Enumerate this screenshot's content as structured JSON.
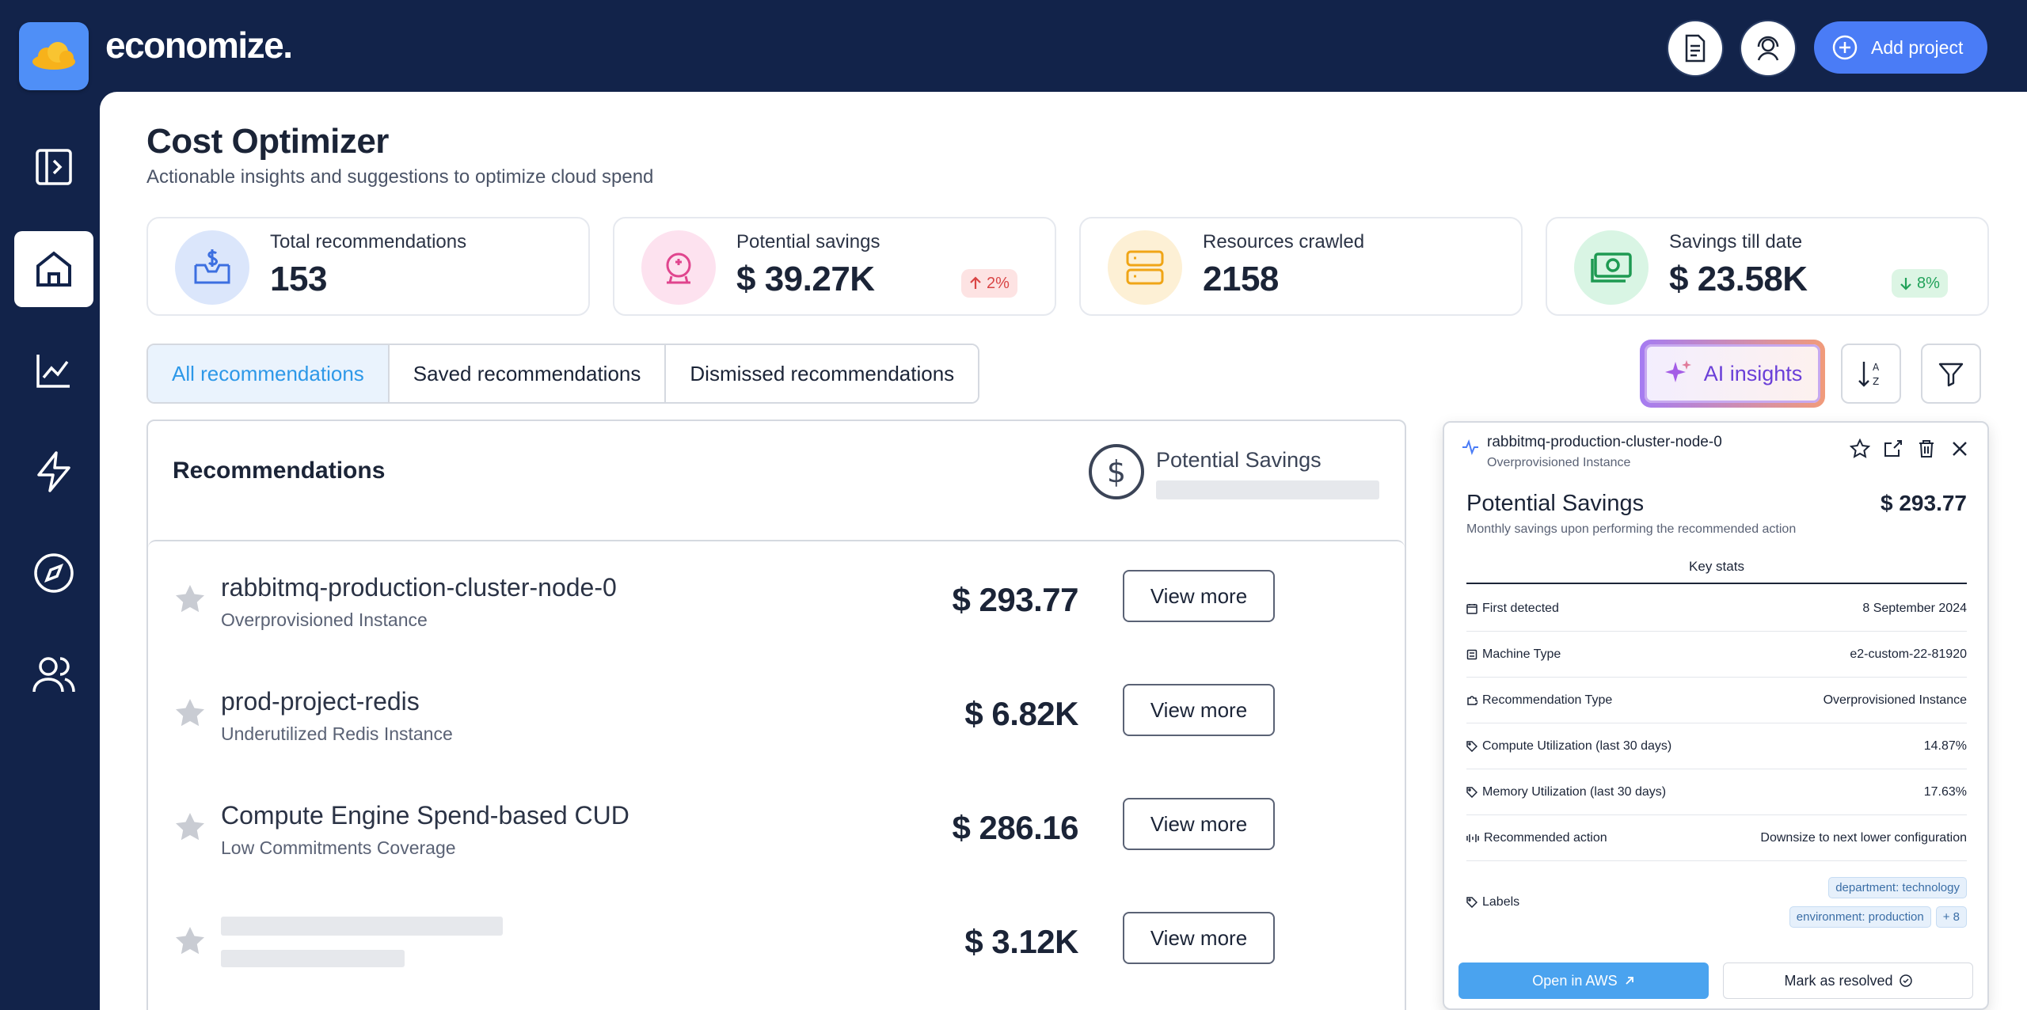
{
  "brand": {
    "name": "economize."
  },
  "header": {
    "docs_icon": "document-icon",
    "support_icon": "support-headset-icon",
    "add_project_label": "Add project"
  },
  "sidebar": {
    "items": [
      {
        "icon": "collapse-sidebar-icon"
      },
      {
        "icon": "home-icon",
        "active": true
      },
      {
        "icon": "chart-icon"
      },
      {
        "icon": "lightning-icon"
      },
      {
        "icon": "compass-icon"
      },
      {
        "icon": "users-icon"
      }
    ]
  },
  "page": {
    "title": "Cost Optimizer",
    "subtitle": "Actionable insights and suggestions to optimize cloud spend"
  },
  "stats": [
    {
      "label": "Total recommendations",
      "value": "153",
      "icon": "inbox-dollar-icon",
      "color": "#dbe6fb"
    },
    {
      "label": "Potential savings",
      "value": "$ 39.27K",
      "badge": "2%",
      "trend": "up",
      "icon": "piggy-bank-icon",
      "color": "#fde2ef"
    },
    {
      "label": "Resources crawled",
      "value": "2158",
      "icon": "server-icon",
      "color": "#fdf0d5"
    },
    {
      "label": "Savings till date",
      "value": "$ 23.58K",
      "badge": "8%",
      "trend": "down",
      "icon": "money-icon",
      "color": "#d9f5e4"
    }
  ],
  "tabs": [
    {
      "label": "All recommendations",
      "active": true
    },
    {
      "label": "Saved recommendations"
    },
    {
      "label": "Dismissed  recommendations"
    }
  ],
  "toolbar": {
    "ai_label": "AI insights",
    "sort_icon": "sort-az-icon",
    "filter_icon": "filter-icon"
  },
  "recommendations": {
    "title": "Recommendations",
    "savings_header": "Potential Savings",
    "view_more_label": "View more",
    "rows": [
      {
        "name": "rabbitmq-production-cluster-node-0",
        "desc": "Overprovisioned Instance",
        "amount": "$ 293.77"
      },
      {
        "name": "prod-project-redis",
        "desc": "Underutilized Redis Instance",
        "amount": "$ 6.82K"
      },
      {
        "name": "Compute Engine Spend-based CUD",
        "desc": "Low Commitments Coverage",
        "amount": "$ 286.16"
      },
      {
        "name": "",
        "desc": "",
        "amount": "$ 3.12K",
        "loading": true
      }
    ]
  },
  "detail": {
    "name": "rabbitmq-production-cluster-node-0",
    "type": "Overprovisioned Instance",
    "ps_title": "Potential Savings",
    "ps_value": "$ 293.77",
    "ps_sub": "Monthly savings upon performing the recommended action",
    "key_stats_label": "Key stats",
    "rows": [
      {
        "label": "First detected",
        "value": "8 September 2024",
        "icon": "calendar-icon"
      },
      {
        "label": "Machine Type",
        "value": "e2-custom-22-81920",
        "icon": "machine-icon"
      },
      {
        "label": "Recommendation Type",
        "value": "Overprovisioned Instance",
        "icon": "puzzle-icon"
      },
      {
        "label": "Compute Utilization (last 30 days)",
        "value": "14.87%",
        "icon": "tag-icon"
      },
      {
        "label": "Memory Utilization (last 30 days)",
        "value": "17.63%",
        "icon": "tag-icon"
      },
      {
        "label": "Recommended action",
        "value": "Downsize to next lower configuration",
        "icon": "action-icon"
      }
    ],
    "labels_title": "Labels",
    "tags": [
      "department: technology",
      "environment: production",
      "+ 8"
    ],
    "open_label": "Open in AWS",
    "resolve_label": "Mark as resolved"
  }
}
